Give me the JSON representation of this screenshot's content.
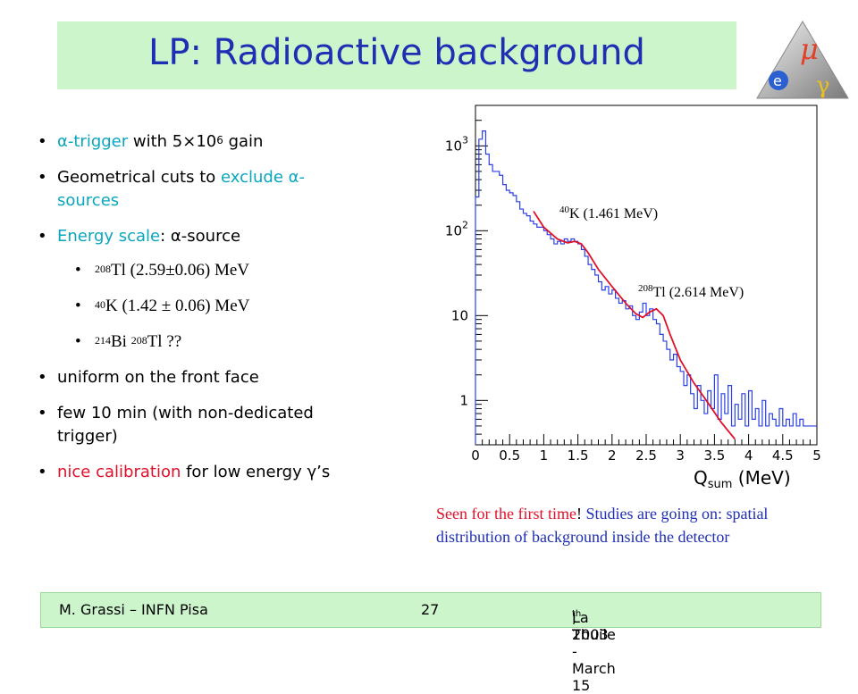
{
  "title": "LP: Radioactive background",
  "bullets": [
    {
      "prefix": "α",
      "text_a": "-trigger",
      "text_b": " with 5×10",
      "sup": "6",
      "text_c": " gain"
    },
    {
      "text_a": "Geometrical cuts to ",
      "text_b": "exclude α-",
      "text_c": "sources"
    },
    {
      "text_a": "Energy scale",
      "text_b": ": α-source"
    },
    {
      "sup": "208",
      "text": "Tl  (2.59±0.06) MeV"
    },
    {
      "sup": "40",
      "text": "K (1.42 ± 0.06) MeV"
    },
    {
      "sup_a": "214",
      "text_a": "Bi ",
      "sup_b": "208",
      "text_b": "Tl ??"
    },
    {
      "text": "uniform on the front face"
    },
    {
      "text_a": "few 10 min (with non-dedicated",
      "text_b": "trigger)"
    },
    {
      "text_a": " nice calibration",
      "text_b": " for low energy γ’s"
    }
  ],
  "caption": {
    "red": "Seen for the first time",
    "excl": "!",
    "blue": " Studies are going on: spatial distribution of background inside the detector"
  },
  "footer": {
    "left": "M. Grassi – INFN Pisa",
    "center": "27",
    "right_a": "La Thuile -  March 15",
    "right_sup": "th",
    "right_b": " , 2003"
  },
  "logo": {
    "mu": "μ",
    "gamma": "γ",
    "e": "e"
  },
  "colors": {
    "title_bg": "#ccf5cc",
    "title_text": "#1f2fb4",
    "histogram": "#2a3fe8",
    "fit": "#e0102a",
    "highlight": "#0aa6bf"
  },
  "chart_data": {
    "type": "line",
    "log_y": true,
    "xlabel_main": "Q",
    "xlabel_sub": "sum",
    "xlabel_unit": "(MeV)",
    "xlim": [
      0,
      5
    ],
    "ylim": [
      0.3,
      3000
    ],
    "x_ticks": [
      "0",
      "0.5",
      "1",
      "1.5",
      "2",
      "2.5",
      "3",
      "3.5",
      "4",
      "4.5",
      "5"
    ],
    "y_ticks": [
      {
        "value": 1,
        "label": "1"
      },
      {
        "value": 10,
        "label": "10"
      },
      {
        "value": 100,
        "base": "10",
        "exp": "2"
      },
      {
        "value": 1000,
        "base": "10",
        "exp": "3"
      }
    ],
    "annotations": [
      {
        "sup": "40",
        "text": "K (1.461 MeV)"
      },
      {
        "sup": "208",
        "text": "Tl (2.614 MeV)"
      }
    ],
    "series": [
      {
        "style": "histogram",
        "x": [
          0.0,
          0.05,
          0.1,
          0.15,
          0.2,
          0.25,
          0.3,
          0.35,
          0.4,
          0.45,
          0.5,
          0.55,
          0.6,
          0.65,
          0.7,
          0.75,
          0.8,
          0.85,
          0.9,
          0.95,
          1.0,
          1.05,
          1.1,
          1.15,
          1.2,
          1.25,
          1.3,
          1.35,
          1.4,
          1.45,
          1.5,
          1.55,
          1.6,
          1.65,
          1.7,
          1.75,
          1.8,
          1.85,
          1.9,
          1.95,
          2.0,
          2.05,
          2.1,
          2.15,
          2.2,
          2.25,
          2.3,
          2.35,
          2.4,
          2.45,
          2.5,
          2.55,
          2.6,
          2.65,
          2.7,
          2.75,
          2.8,
          2.85,
          2.9,
          2.95,
          3.0,
          3.05,
          3.1,
          3.15,
          3.2,
          3.25,
          3.3,
          3.35,
          3.4,
          3.45,
          3.5,
          3.55,
          3.6,
          3.65,
          3.7,
          3.75,
          3.8,
          3.85,
          3.9,
          3.95,
          4.0,
          4.05,
          4.1,
          4.15,
          4.2,
          4.25,
          4.3,
          4.35,
          4.4,
          4.45,
          4.5,
          4.55,
          4.6,
          4.65,
          4.7,
          4.75,
          4.8,
          4.85,
          4.9,
          4.95
        ],
        "y": [
          250,
          1200,
          1500,
          800,
          600,
          500,
          500,
          450,
          350,
          300,
          280,
          260,
          220,
          180,
          160,
          150,
          130,
          120,
          110,
          110,
          100,
          90,
          80,
          70,
          75,
          70,
          80,
          75,
          80,
          75,
          70,
          60,
          50,
          40,
          35,
          30,
          25,
          20,
          22,
          18,
          20,
          16,
          14,
          15,
          12,
          13,
          10,
          9,
          11,
          14,
          10,
          12,
          9,
          8,
          6,
          5,
          4,
          3,
          3.5,
          2.5,
          2.2,
          1.5,
          2,
          1.2,
          0.8,
          1.5,
          1,
          0.7,
          1.3,
          0.8,
          2,
          0.6,
          1.2,
          0.7,
          1.5,
          0.5,
          0.9,
          0.6,
          1.2,
          0.5,
          1.3,
          0.6,
          0.8,
          0.5,
          1,
          0.5,
          0.7,
          0.6,
          0.5,
          0.8,
          0.5,
          0.6,
          0.5,
          0.7,
          0.5,
          0.6,
          0.5,
          0.5,
          0.5,
          0.5
        ]
      },
      {
        "style": "fit",
        "x": [
          0.85,
          1.0,
          1.2,
          1.35,
          1.45,
          1.55,
          1.65,
          1.8,
          2.0,
          2.2,
          2.35,
          2.45,
          2.55,
          2.65,
          2.75,
          2.85,
          3.0,
          3.2,
          3.4,
          3.6,
          3.8
        ],
        "y": [
          170,
          110,
          80,
          72,
          75,
          70,
          55,
          35,
          22,
          14,
          10.5,
          9.5,
          11,
          12,
          10,
          6,
          3,
          1.6,
          0.95,
          0.55,
          0.35
        ]
      }
    ]
  }
}
